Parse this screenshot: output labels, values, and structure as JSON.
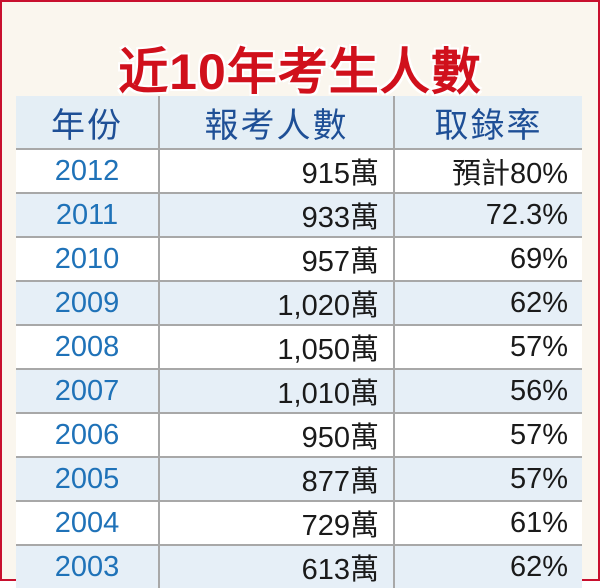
{
  "chart_data": {
    "type": "table",
    "title": "近10年考生人數",
    "columns": [
      "年份",
      "報考人數",
      "取錄率"
    ],
    "rows": [
      [
        "2012",
        "915萬",
        "預計80%"
      ],
      [
        "2011",
        "933萬",
        "72.3%"
      ],
      [
        "2010",
        "957萬",
        "69%"
      ],
      [
        "2009",
        "1,020萬",
        "62%"
      ],
      [
        "2008",
        "1,050萬",
        "57%"
      ],
      [
        "2007",
        "1,010萬",
        "56%"
      ],
      [
        "2006",
        "950萬",
        "57%"
      ],
      [
        "2005",
        "877萬",
        "57%"
      ],
      [
        "2004",
        "729萬",
        "61%"
      ],
      [
        "2003",
        "613萬",
        "62%"
      ]
    ]
  },
  "colors": {
    "title": "#d0101c",
    "header_text": "#1e4f96",
    "year_text": "#1f72b8",
    "border": "#c8102e",
    "alt_row": "#e6eff7"
  }
}
